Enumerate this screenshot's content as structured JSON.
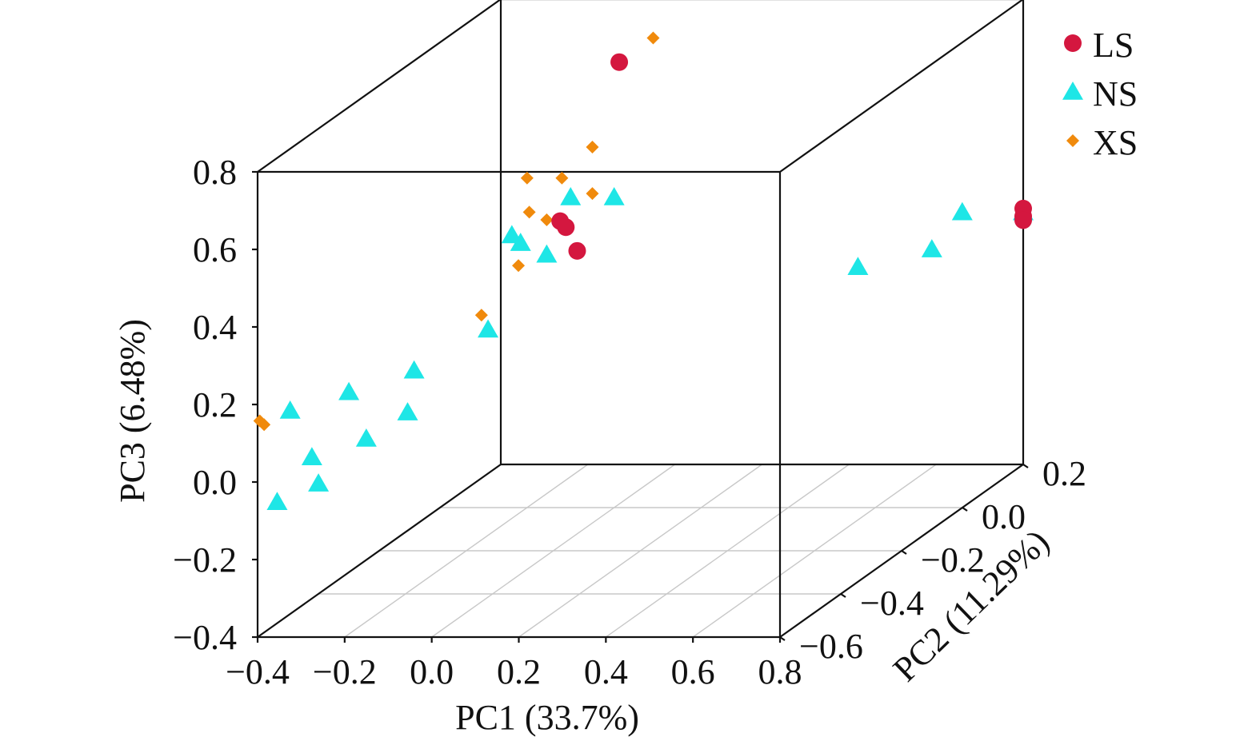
{
  "chart_data": {
    "type": "scatter",
    "projection": "3d",
    "xlabel": "PC1 (33.7%)",
    "ylabel": "PC2 (11.29%)",
    "zlabel": "PC3 (6.48%)",
    "xlim": [
      -0.4,
      0.8
    ],
    "ylim": [
      -0.6,
      0.2
    ],
    "zlim": [
      -0.4,
      0.8
    ],
    "xticks": [
      "−0.4",
      "−0.2",
      "0.0",
      "0.2",
      "0.4",
      "0.6",
      "0.8"
    ],
    "yticks": [
      "−0.6",
      "−0.4",
      "−0.2",
      "0.0",
      "0.2"
    ],
    "zticks": [
      "0.8",
      "0.6",
      "0.4",
      "0.2",
      "0.0",
      "−0.2",
      "−0.4"
    ],
    "legend_position": "top-right",
    "series": [
      {
        "name": "LS",
        "marker": "circle",
        "color": "#d4173f",
        "points": [
          [
            -0.1,
            0.16,
            0.66
          ],
          [
            -0.11,
            -0.02,
            0.35
          ],
          [
            -0.09,
            -0.03,
            0.34
          ],
          [
            -0.05,
            -0.05,
            0.29
          ],
          [
            0.8,
            0.2,
            0.26
          ],
          [
            0.8,
            0.2,
            0.24
          ],
          [
            0.8,
            0.2,
            0.23
          ]
        ]
      },
      {
        "name": "NS",
        "marker": "triangle",
        "color": "#1ee6e6",
        "points": [
          [
            -0.1,
            0.0,
            0.4
          ],
          [
            0.0,
            0.0,
            0.4
          ],
          [
            -0.2,
            -0.05,
            0.33
          ],
          [
            -0.18,
            -0.05,
            0.31
          ],
          [
            -0.12,
            -0.05,
            0.28
          ],
          [
            -0.15,
            -0.2,
            0.17
          ],
          [
            -0.25,
            -0.3,
            0.12
          ],
          [
            -0.33,
            -0.4,
            0.12
          ],
          [
            -0.43,
            -0.45,
            0.1
          ],
          [
            -0.23,
            -0.35,
            0.04
          ],
          [
            -0.29,
            -0.4,
            0.0
          ],
          [
            -0.38,
            -0.45,
            -0.02
          ],
          [
            -0.33,
            -0.5,
            -0.06
          ],
          [
            -0.39,
            -0.55,
            -0.08
          ],
          [
            0.56,
            0.0,
            0.22
          ],
          [
            0.66,
            0.2,
            0.25
          ],
          [
            0.66,
            0.1,
            0.21
          ],
          [
            0.8,
            0.2,
            0.25
          ]
        ]
      },
      {
        "name": "XS",
        "marker": "diamond",
        "color": "#f08a0c",
        "points": [
          [
            -0.05,
            0.2,
            0.7
          ],
          [
            -0.05,
            0.0,
            0.53
          ],
          [
            -0.2,
            0.0,
            0.45
          ],
          [
            -0.12,
            0.0,
            0.45
          ],
          [
            -0.05,
            0.0,
            0.41
          ],
          [
            -0.16,
            -0.05,
            0.39
          ],
          [
            -0.12,
            -0.05,
            0.37
          ],
          [
            -0.15,
            -0.1,
            0.28
          ],
          [
            -0.2,
            -0.15,
            0.18
          ],
          [
            -0.43,
            -0.55,
            0.13
          ],
          [
            -0.42,
            -0.55,
            0.12
          ],
          [
            0.8,
            0.2,
            0.23
          ]
        ]
      }
    ]
  }
}
